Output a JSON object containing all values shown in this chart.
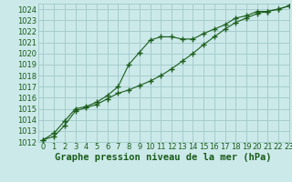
{
  "title": "Graphe pression niveau de la mer (hPa)",
  "bg_color": "#cbe9e9",
  "grid_color": "#a0c8c8",
  "line_color": "#1a5c1a",
  "marker_color": "#1a5c1a",
  "xlim": [
    -0.5,
    23
  ],
  "ylim": [
    1012,
    1024.5
  ],
  "yticks": [
    1012,
    1013,
    1014,
    1015,
    1016,
    1017,
    1018,
    1019,
    1020,
    1021,
    1022,
    1023,
    1024
  ],
  "xticks": [
    0,
    1,
    2,
    3,
    4,
    5,
    6,
    7,
    8,
    9,
    10,
    11,
    12,
    13,
    14,
    15,
    16,
    17,
    18,
    19,
    20,
    21,
    22,
    23
  ],
  "series1_x": [
    0,
    1,
    2,
    3,
    4,
    5,
    6,
    7,
    8,
    9,
    10,
    11,
    12,
    13,
    14,
    15,
    16,
    17,
    18,
    19,
    20,
    21,
    22,
    23
  ],
  "series1_y": [
    1012.2,
    1012.8,
    1013.9,
    1015.0,
    1015.2,
    1015.6,
    1016.2,
    1017.0,
    1019.0,
    1020.1,
    1021.2,
    1021.5,
    1021.5,
    1021.3,
    1021.3,
    1021.8,
    1022.2,
    1022.6,
    1023.2,
    1023.4,
    1023.8,
    1023.8,
    1024.0,
    1024.3
  ],
  "series2_x": [
    0,
    1,
    2,
    3,
    4,
    5,
    6,
    7,
    8,
    9,
    10,
    11,
    12,
    13,
    14,
    15,
    16,
    17,
    18,
    19,
    20,
    21,
    22,
    23
  ],
  "series2_y": [
    1012.2,
    1012.5,
    1013.5,
    1014.8,
    1015.1,
    1015.4,
    1015.9,
    1016.4,
    1016.7,
    1017.1,
    1017.5,
    1018.0,
    1018.6,
    1019.3,
    1020.0,
    1020.8,
    1021.5,
    1022.2,
    1022.8,
    1023.2,
    1023.6,
    1023.8,
    1024.0,
    1024.3
  ],
  "tick_fontsize": 6,
  "title_fontsize": 7.5
}
